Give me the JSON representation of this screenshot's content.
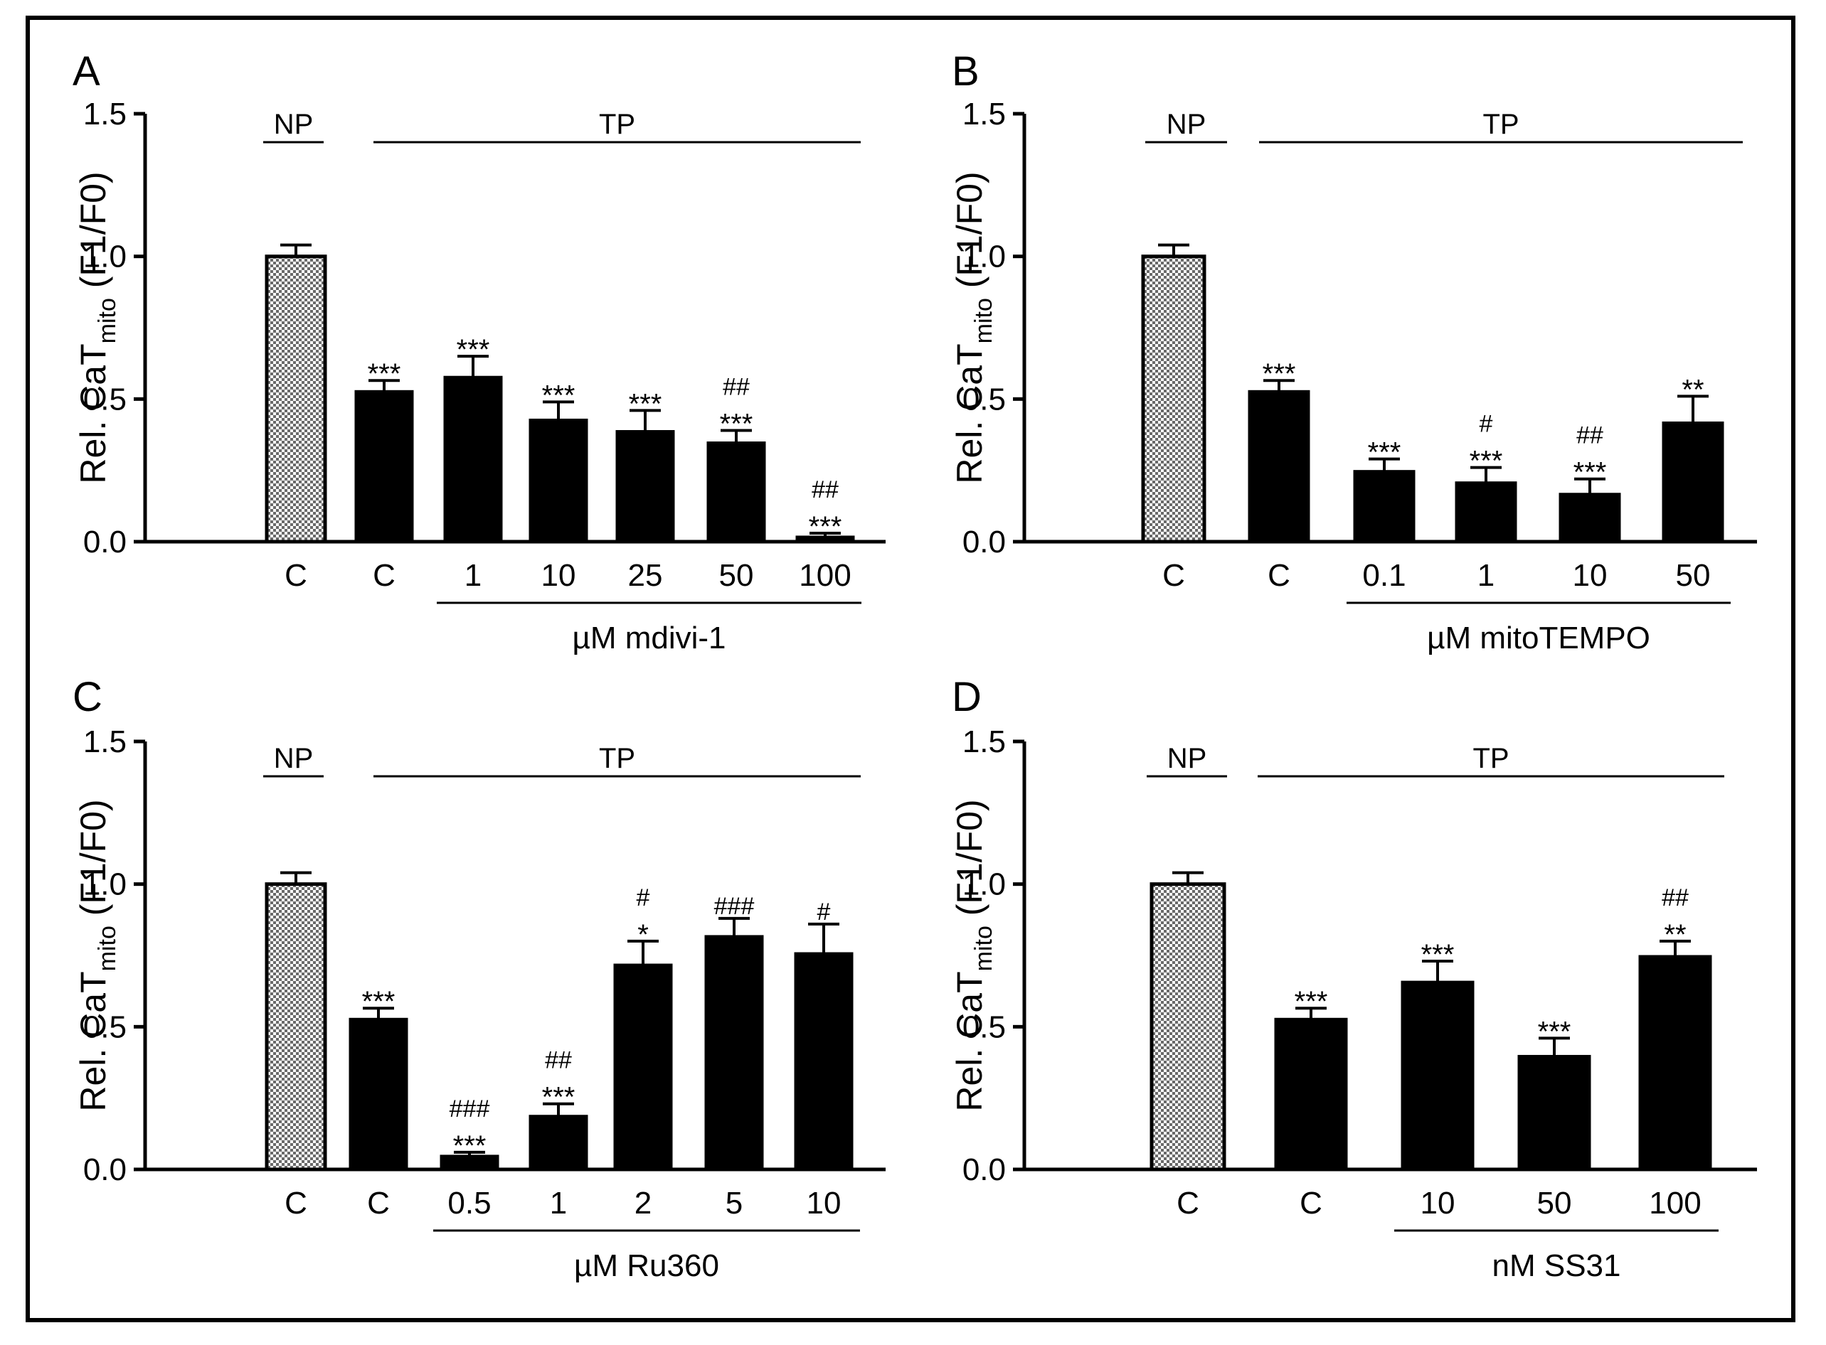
{
  "figure": {
    "y_axis_label": "Rel. CaT",
    "y_axis_label_sub": "mito",
    "y_axis_label_tail": " (F1/F0)",
    "np_label": "NP",
    "tp_label": "TP",
    "colors": {
      "bar": "#000000",
      "control_fill": "#c8c8c8",
      "frame": "#000000"
    }
  },
  "chart_data": [
    {
      "panel": "A",
      "type": "bar",
      "ylim": [
        0,
        1.5
      ],
      "yticks": [
        "0.0",
        "0.5",
        "1.0",
        "1.5"
      ],
      "ytick_values": [
        0,
        0.5,
        1.0,
        1.5
      ],
      "xlabel": "µM mdivi-1",
      "categories": [
        "C",
        "C",
        "1",
        "10",
        "25",
        "50",
        "100"
      ],
      "values": [
        1.0,
        0.53,
        0.58,
        0.43,
        0.39,
        0.35,
        0.02
      ],
      "errors": [
        0.04,
        0.035,
        0.07,
        0.06,
        0.07,
        0.04,
        0.01
      ],
      "significance": [
        [
          "",
          ""
        ],
        [
          "***",
          ""
        ],
        [
          "***",
          ""
        ],
        [
          "***",
          ""
        ],
        [
          "***",
          ""
        ],
        [
          "***",
          "##"
        ],
        [
          "***",
          "##"
        ]
      ]
    },
    {
      "panel": "B",
      "type": "bar",
      "ylim": [
        0,
        1.5
      ],
      "yticks": [
        "0.0",
        "0.5",
        "1.0",
        "1.5"
      ],
      "ytick_values": [
        0,
        0.5,
        1.0,
        1.5
      ],
      "xlabel": "µM mitoTEMPO",
      "categories": [
        "C",
        "C",
        "0.1",
        "1",
        "10",
        "50"
      ],
      "values": [
        1.0,
        0.53,
        0.25,
        0.21,
        0.17,
        0.42
      ],
      "errors": [
        0.04,
        0.035,
        0.04,
        0.05,
        0.05,
        0.09
      ],
      "significance": [
        [
          "",
          ""
        ],
        [
          "***",
          ""
        ],
        [
          "***",
          ""
        ],
        [
          "***",
          "#"
        ],
        [
          "***",
          "##"
        ],
        [
          "**",
          ""
        ]
      ]
    },
    {
      "panel": "C",
      "type": "bar",
      "ylim": [
        0,
        1.5
      ],
      "yticks": [
        "0.0",
        "0.5",
        "1.0",
        "1.5"
      ],
      "ytick_values": [
        0,
        0.5,
        1.0,
        1.5
      ],
      "xlabel": "µM Ru360",
      "categories": [
        "C",
        "C",
        "0.5",
        "1",
        "2",
        "5",
        "10"
      ],
      "values": [
        1.0,
        0.53,
        0.05,
        0.19,
        0.72,
        0.82,
        0.76
      ],
      "errors": [
        0.04,
        0.035,
        0.01,
        0.04,
        0.08,
        0.06,
        0.1
      ],
      "significance": [
        [
          "",
          ""
        ],
        [
          "***",
          ""
        ],
        [
          "***",
          "###"
        ],
        [
          "***",
          "##"
        ],
        [
          "*",
          "#"
        ],
        [
          "",
          "###"
        ],
        [
          "",
          "#"
        ]
      ]
    },
    {
      "panel": "D",
      "type": "bar",
      "ylim": [
        0,
        1.5
      ],
      "yticks": [
        "0.0",
        "0.5",
        "1.0",
        "1.5"
      ],
      "ytick_values": [
        0,
        0.5,
        1.0,
        1.5
      ],
      "xlabel": "nM SS31",
      "categories": [
        "C",
        "C",
        "10",
        "50",
        "100"
      ],
      "values": [
        1.0,
        0.53,
        0.66,
        0.4,
        0.75
      ],
      "errors": [
        0.04,
        0.035,
        0.07,
        0.06,
        0.05
      ],
      "significance": [
        [
          "",
          ""
        ],
        [
          "***",
          ""
        ],
        [
          "***",
          ""
        ],
        [
          "***",
          ""
        ],
        [
          "**",
          "##"
        ]
      ]
    }
  ]
}
